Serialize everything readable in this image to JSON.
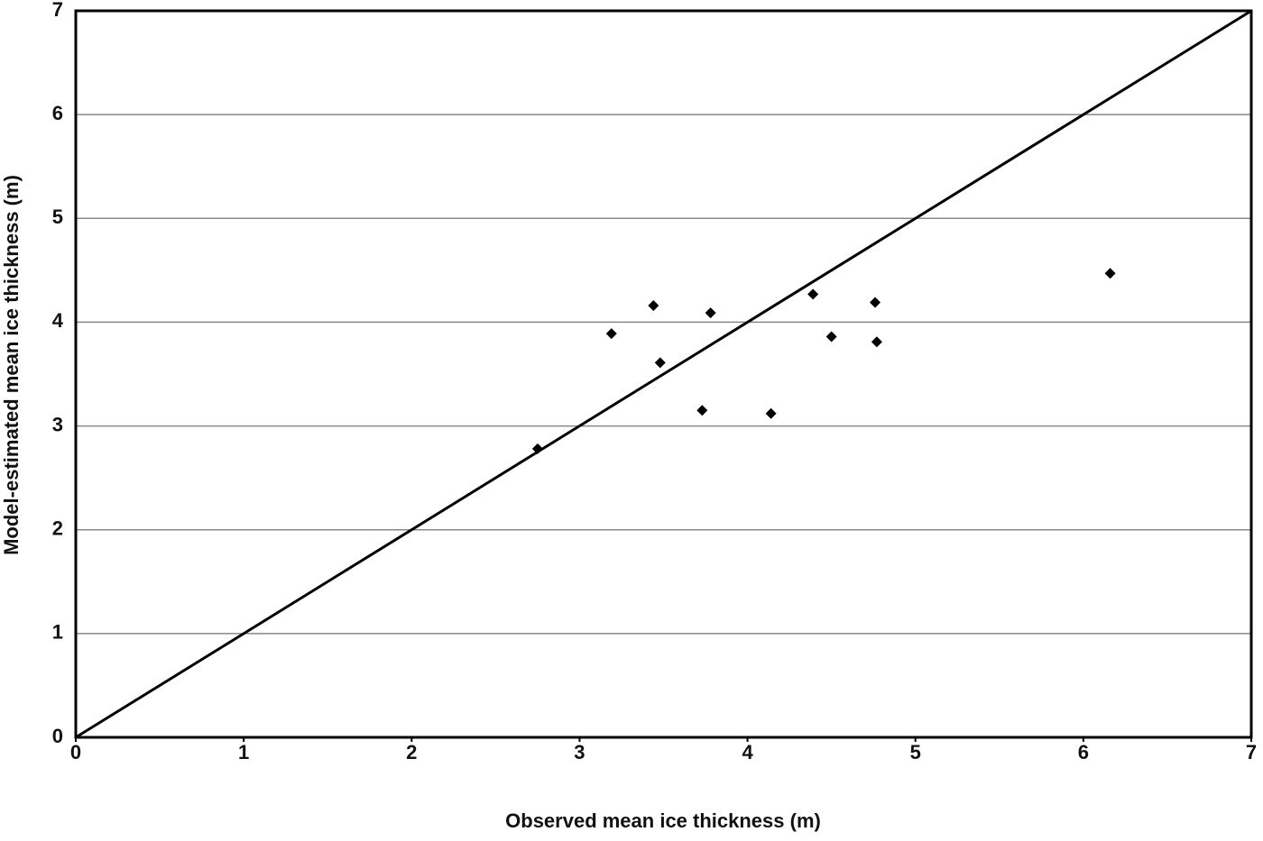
{
  "chart_data": {
    "type": "scatter",
    "x_label": "Observed mean ice thickness (m)",
    "y_label": "Model-estimated mean ice thickness (m)",
    "series": [
      {
        "color": "#000000",
        "x": [
          2.75,
          3.19,
          3.44,
          3.48,
          3.73,
          3.78,
          4.14,
          4.39,
          4.5,
          4.76,
          4.77,
          6.16
        ],
        "values": [
          2.78,
          3.89,
          4.16,
          3.61,
          3.15,
          4.09,
          3.12,
          4.27,
          3.86,
          4.19,
          3.81,
          4.47
        ]
      }
    ],
    "reference_line": {
      "x": [
        0,
        7
      ],
      "values": [
        0,
        7
      ],
      "color": "#000000"
    },
    "xlim": [
      0,
      7
    ],
    "ylim": [
      0,
      7
    ],
    "xticks": [
      0,
      1,
      2,
      3,
      4,
      5,
      6,
      7
    ],
    "yticks": [
      0,
      1,
      2,
      3,
      4,
      5,
      6,
      7
    ],
    "grid": true
  }
}
